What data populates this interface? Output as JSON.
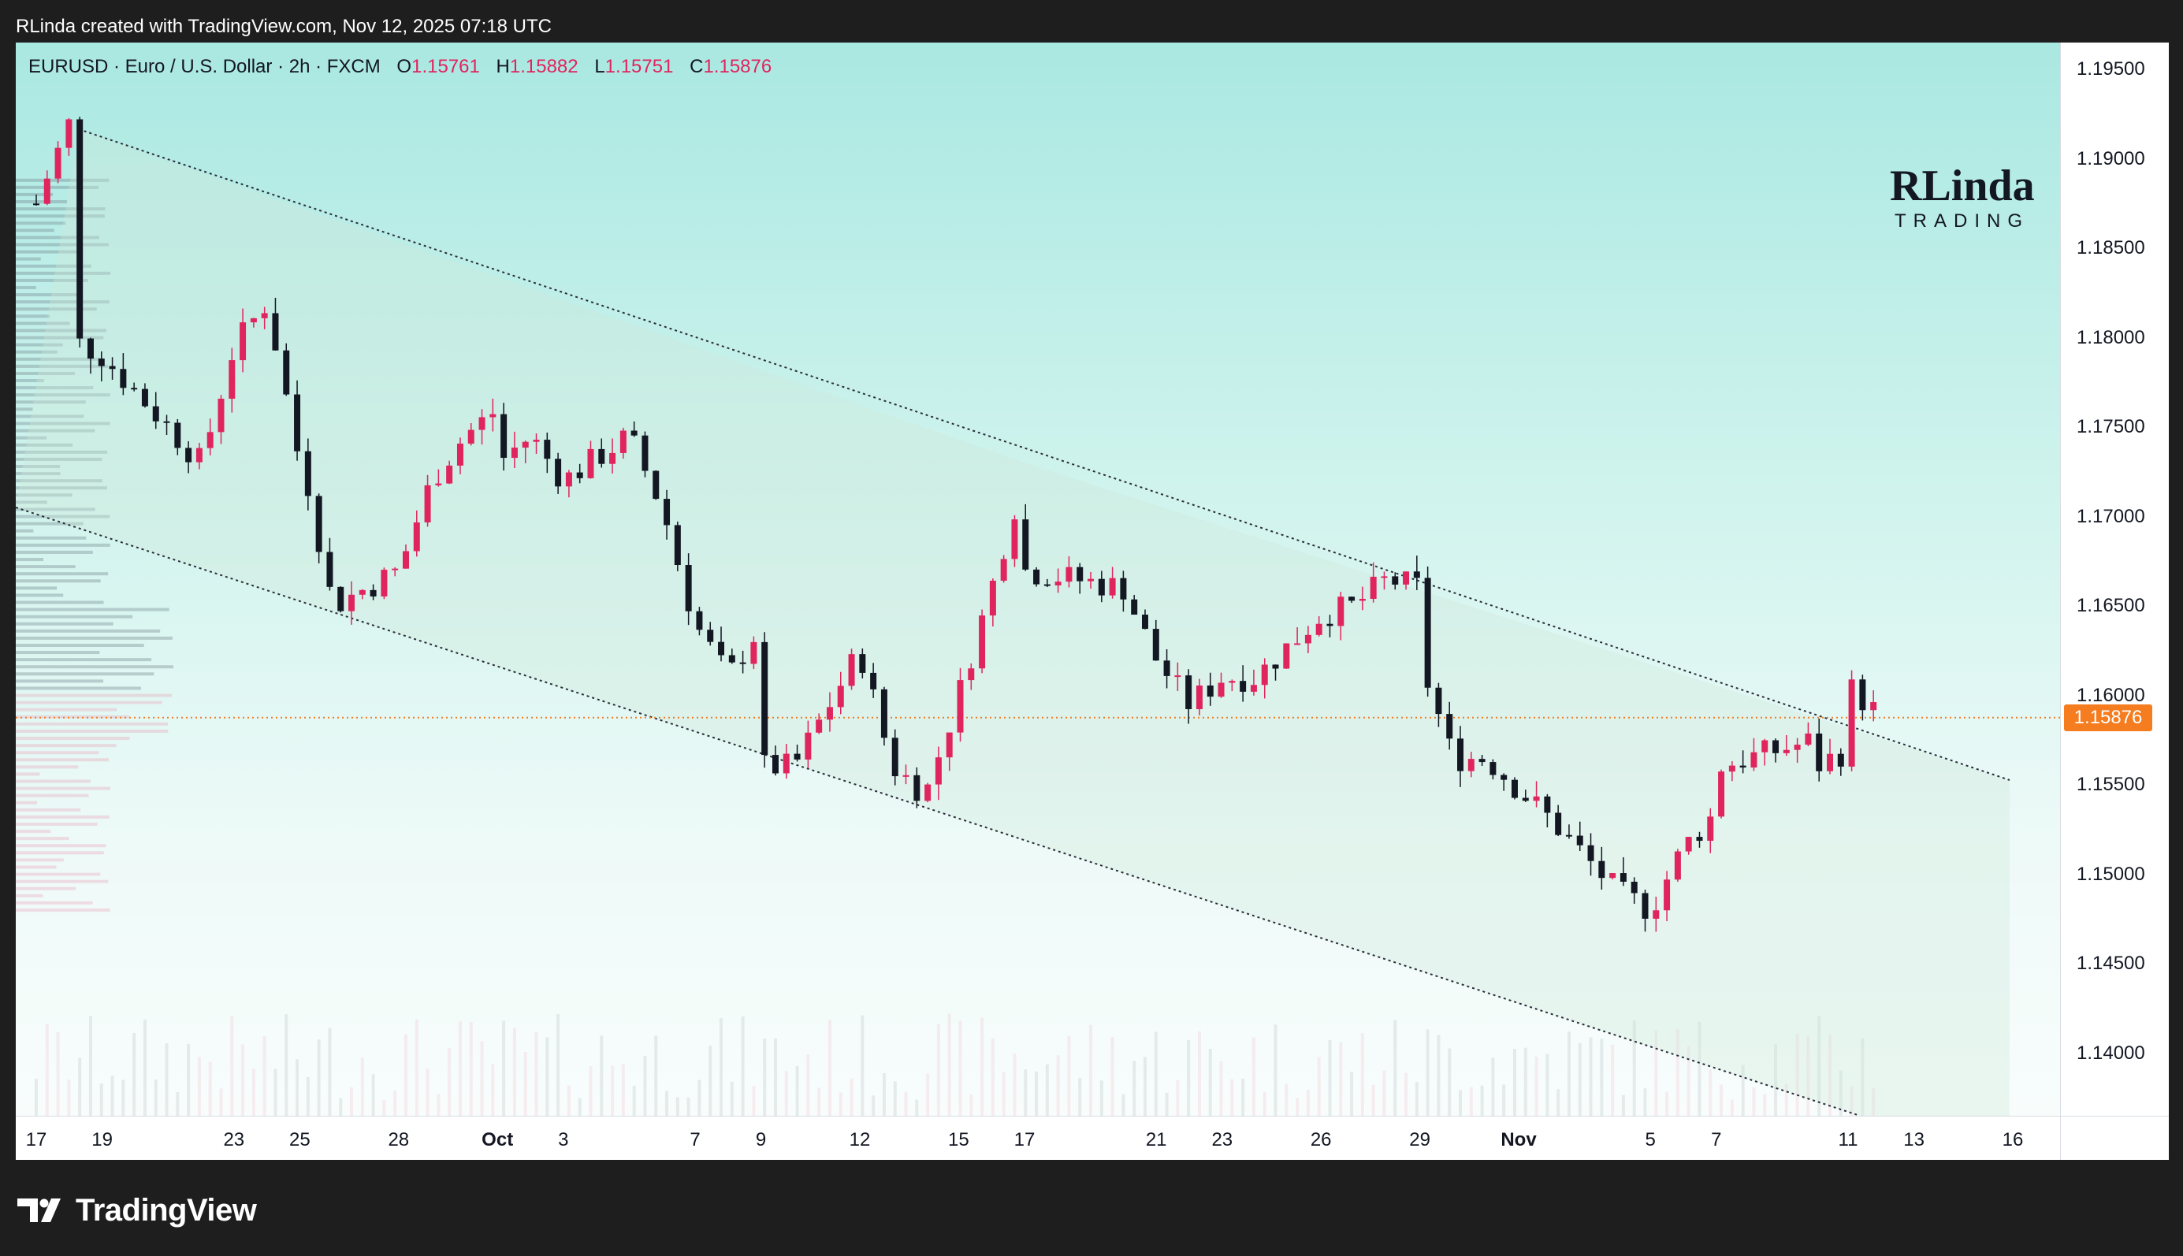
{
  "caption": "RLinda created with TradingView.com, Nov 12, 2025 07:18 UTC",
  "legend": {
    "symbol_line": "EURUSD · Euro / U.S. Dollar · 2h · FXCM",
    "o_label": "O",
    "o_value": "1.15761",
    "h_label": "H",
    "h_value": "1.15882",
    "l_label": "L",
    "l_value": "1.15751",
    "c_label": "C",
    "c_value": "1.15876"
  },
  "watermark": {
    "line1": "RLinda",
    "line2": "TRADING"
  },
  "brand": {
    "name": "TradingView"
  },
  "last_price": {
    "label": "1.15876",
    "value": 1.15876
  },
  "colors": {
    "bull": "#e0245e",
    "bear": "#131722",
    "channel": "#2a2e39",
    "last_price": "#f57c1f",
    "bg_top": "#aae8e2",
    "bg_bottom": "#f8fdfc"
  },
  "price_axis": {
    "ticks": [
      "1.19500",
      "1.19000",
      "1.18500",
      "1.18000",
      "1.17500",
      "1.17000",
      "1.16500",
      "1.16000",
      "1.15500",
      "1.15000",
      "1.14500",
      "1.14000"
    ]
  },
  "time_axis": {
    "ticks": [
      {
        "label": "17",
        "bold": false
      },
      {
        "label": "19",
        "bold": false
      },
      {
        "label": "23",
        "bold": false
      },
      {
        "label": "25",
        "bold": false
      },
      {
        "label": "28",
        "bold": false
      },
      {
        "label": "Oct",
        "bold": true
      },
      {
        "label": "3",
        "bold": false
      },
      {
        "label": "7",
        "bold": false
      },
      {
        "label": "9",
        "bold": false
      },
      {
        "label": "12",
        "bold": false
      },
      {
        "label": "15",
        "bold": false
      },
      {
        "label": "17",
        "bold": false
      },
      {
        "label": "21",
        "bold": false
      },
      {
        "label": "23",
        "bold": false
      },
      {
        "label": "26",
        "bold": false
      },
      {
        "label": "29",
        "bold": false
      },
      {
        "label": "Nov",
        "bold": true
      },
      {
        "label": "5",
        "bold": false
      },
      {
        "label": "7",
        "bold": false
      },
      {
        "label": "11",
        "bold": false
      },
      {
        "label": "13",
        "bold": false
      },
      {
        "label": "16",
        "bold": false
      }
    ]
  },
  "chart_data": {
    "type": "candlestick",
    "symbol": "EURUSD",
    "timeframe": "2h",
    "x_range": [
      "Sep 17",
      "Nov 16"
    ],
    "y_range": [
      1.1365,
      1.1965
    ],
    "price_path": [
      [
        "Sep 17",
        1.1875
      ],
      [
        "Sep 18",
        1.192
      ],
      [
        "Sep 18",
        1.18
      ],
      [
        "Sep 19",
        1.179
      ],
      [
        "Sep 22",
        1.173
      ],
      [
        "Sep 23",
        1.1795
      ],
      [
        "Sep 24",
        1.182
      ],
      [
        "Sep 25",
        1.173
      ],
      [
        "Sep 25",
        1.174
      ],
      [
        "Sep 26",
        1.165
      ],
      [
        "Sep 28",
        1.167
      ],
      [
        "Sep 29",
        1.172
      ],
      [
        "Sep 30",
        1.1745
      ],
      [
        "Oct 1",
        1.176
      ],
      [
        "Oct 1",
        1.173
      ],
      [
        "Oct 2",
        1.1745
      ],
      [
        "Oct 3",
        1.172
      ],
      [
        "Oct 5",
        1.1745
      ],
      [
        "Oct 6",
        1.1705
      ],
      [
        "Oct 7",
        1.164
      ],
      [
        "Oct 8",
        1.161
      ],
      [
        "Oct 9",
        1.164
      ],
      [
        "Oct 9",
        1.156
      ],
      [
        "Oct 10",
        1.156
      ],
      [
        "Oct 12",
        1.1625
      ],
      [
        "Oct 13",
        1.156
      ],
      [
        "Oct 14",
        1.1545
      ],
      [
        "Oct 15",
        1.16
      ],
      [
        "Oct 16",
        1.166
      ],
      [
        "Oct 17",
        1.1725
      ],
      [
        "Oct 17",
        1.167
      ],
      [
        "Oct 20",
        1.166
      ],
      [
        "Oct 21",
        1.162
      ],
      [
        "Oct 22",
        1.1595
      ],
      [
        "Oct 23",
        1.161
      ],
      [
        "Oct 24",
        1.161
      ],
      [
        "Oct 26",
        1.1645
      ],
      [
        "Oct 27",
        1.165
      ],
      [
        "Oct 28",
        1.1665
      ],
      [
        "Oct 29",
        1.166
      ],
      [
        "Oct 29",
        1.162
      ],
      [
        "Oct 30",
        1.1565
      ],
      [
        "Oct 31",
        1.1565
      ],
      [
        "Nov 2",
        1.153
      ],
      [
        "Nov 3",
        1.151
      ],
      [
        "Nov 4",
        1.149
      ],
      [
        "Nov 5",
        1.148
      ],
      [
        "Nov 6",
        1.1515
      ],
      [
        "Nov 7",
        1.1535
      ],
      [
        "Nov 7",
        1.156
      ],
      [
        "Nov 10",
        1.1575
      ],
      [
        "Nov 10",
        1.156
      ],
      [
        "Nov 11",
        1.157
      ],
      [
        "Nov 11",
        1.1605
      ],
      [
        "Nov 12",
        1.1588
      ]
    ],
    "last_close": 1.15876,
    "annotations": [
      "descending channel upper line",
      "descending channel lower line",
      "volume profile at left edge",
      "volume histogram at bottom"
    ]
  }
}
